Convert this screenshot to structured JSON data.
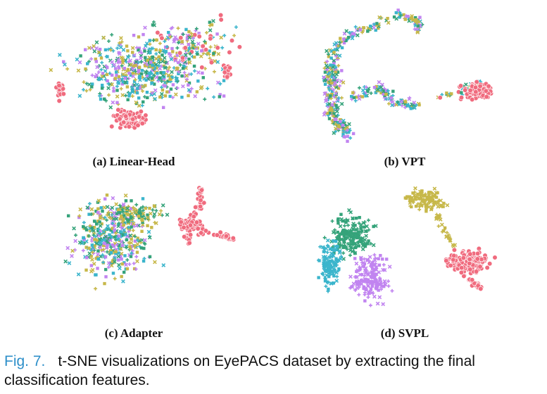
{
  "figure": {
    "label": "Fig. 7.",
    "caption": "t-SNE visualizations on EyePACS dataset by extracting the final classification features."
  },
  "panels": [
    {
      "id": "a",
      "caption": "(a) Linear-Head"
    },
    {
      "id": "b",
      "caption": "(b) VPT"
    },
    {
      "id": "c",
      "caption": "(c) Adapter"
    },
    {
      "id": "d",
      "caption": "(d) SVPL"
    }
  ],
  "colors": {
    "class0": "#f06b7e",
    "class1": "#c7b84a",
    "class2": "#35a37a",
    "class3": "#3bb5cc",
    "class4": "#c184f0"
  }
}
